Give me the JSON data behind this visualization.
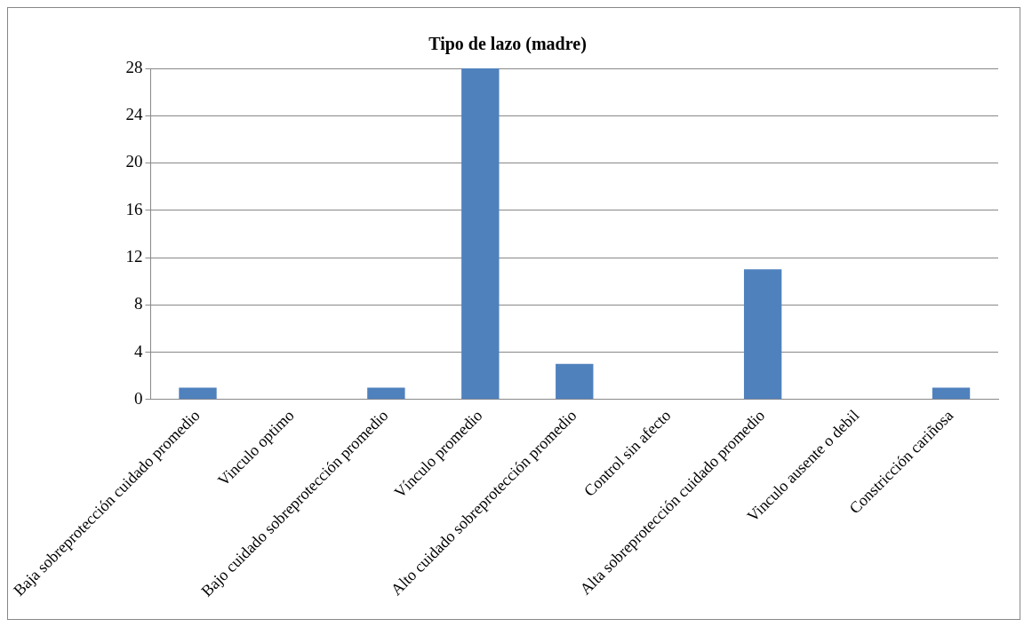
{
  "chart_data": {
    "type": "bar",
    "title": "Tipo de lazo (madre)",
    "categories": [
      "Baja sobreprotección cuidado promedio",
      "Vinculo optimo",
      "Bajo cuidado sobreprotección promedio",
      "Vínculo promedio",
      "Alto cuidado sobreprotección promedio",
      "Control sin afecto",
      "Alta sobreprotección cuidado promedio",
      "Vinculo ausente o debil",
      "Constricción cariñosa"
    ],
    "values": [
      1,
      0,
      1,
      28,
      3,
      0,
      11,
      0,
      1
    ],
    "color": "#4f81bd",
    "ylim": [
      0,
      28
    ],
    "yticks": [
      0,
      4,
      8,
      12,
      16,
      20,
      24,
      28
    ],
    "grid": "y",
    "legend": false
  }
}
